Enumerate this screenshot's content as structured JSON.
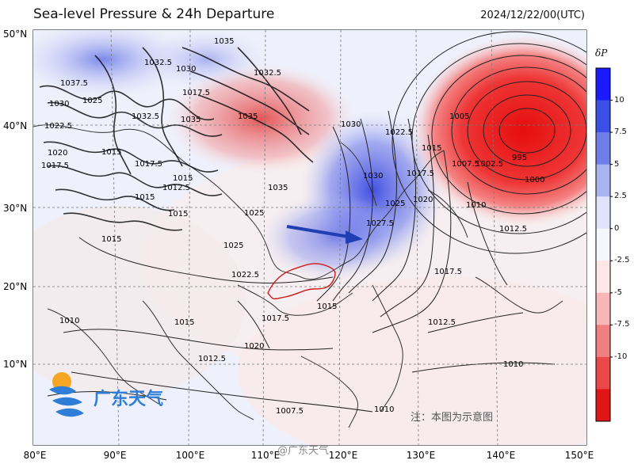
{
  "title": "Sea-level Pressure & 24h Departure",
  "timestamp": "2024/12/22/00(UTC)",
  "colorbar": {
    "label": "δP",
    "ticks": [
      "10",
      "7.5",
      "5",
      "2.5",
      "0",
      "-2.5",
      "-5",
      "-7.5",
      "-10"
    ],
    "colors": [
      "#1a1aff",
      "#3b4ee6",
      "#6f7fea",
      "#a9b3f2",
      "#dfe3fb",
      "#f6f7fe",
      "#fde6e6",
      "#f8b6b6",
      "#f07f7f",
      "#e84848",
      "#e01515"
    ]
  },
  "map": {
    "lat_labels": [
      "50°N",
      "40°N",
      "30°N",
      "20°N",
      "10°N"
    ],
    "lon_labels": [
      "80°E",
      "90°E",
      "100°E",
      "110°E",
      "120°E",
      "130°E",
      "140°E",
      "150°E"
    ],
    "isobar_labels": [
      "1035",
      "1030",
      "1032.5",
      "1037.5",
      "1030",
      "1025",
      "1032.5",
      "1035",
      "1022.5",
      "1035",
      "1032.5",
      "1020",
      "1015",
      "1017.5",
      "1015",
      "1017.5",
      "1012.5",
      "1015",
      "1015",
      "1015",
      "1035",
      "1017.5",
      "1025",
      "1025",
      "1022.5",
      "1030",
      "1022.5",
      "1015",
      "1030",
      "1027.5",
      "1025",
      "1020",
      "1017.5",
      "1007.5",
      "1005",
      "995",
      "1002.5",
      "1000",
      "1010",
      "1012.5",
      "1017.5",
      "1015",
      "1012.5",
      "1010",
      "1015",
      "1017.5",
      "1012.5",
      "1010",
      "1007.5",
      "1010",
      "1020"
    ],
    "high_pressure_center": "1035",
    "low_pressure_center": "995"
  },
  "watermark": {
    "logo_text": "广东天气",
    "note": "注：本图为示意图",
    "bottom_left": "@广东天气"
  }
}
